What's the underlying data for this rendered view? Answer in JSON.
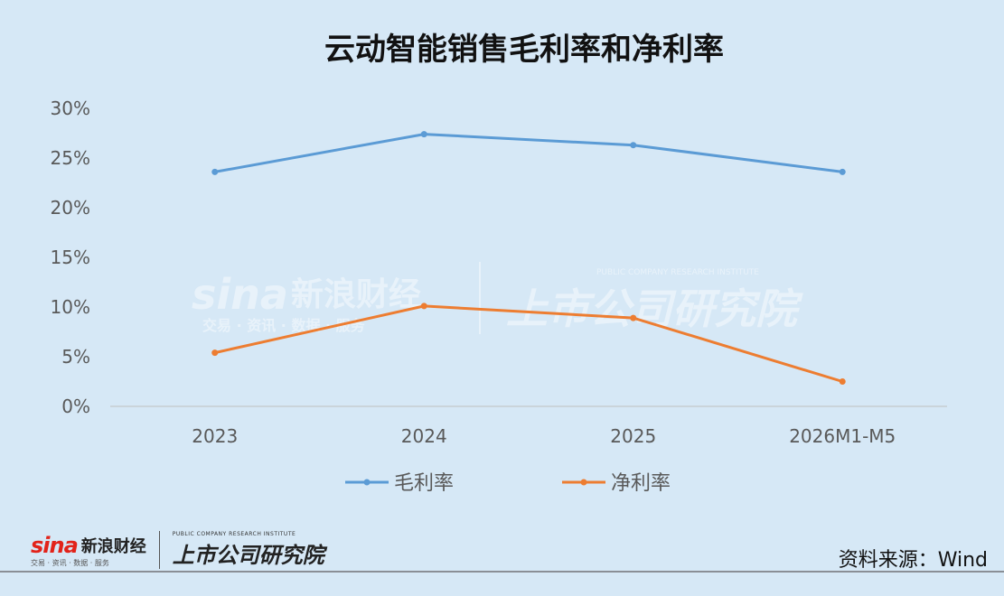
{
  "chart_data": {
    "type": "line",
    "title": "云动智能销售毛利率和净利率",
    "categories": [
      "2023",
      "2024",
      "2025",
      "2026M1-M5"
    ],
    "series": [
      {
        "name": "毛利率",
        "values": [
          23.6,
          27.4,
          26.3,
          23.6
        ],
        "color": "#5b9bd5"
      },
      {
        "name": "净利率",
        "values": [
          5.4,
          10.1,
          8.9,
          2.5
        ],
        "color": "#ed7d31"
      }
    ],
    "y_ticks": [
      "0%",
      "5%",
      "10%",
      "15%",
      "20%",
      "25%",
      "30%"
    ],
    "ylim": [
      0,
      30
    ],
    "legend": "bottom",
    "grid": false
  },
  "watermark": {
    "sina_word": "sina",
    "sina_cn": "新浪财经",
    "sina_sub": "交易 · 资讯 · 数据 · 服务",
    "research_en": "PUBLIC COMPANY RESEARCH INSTITUTE",
    "research_cn": "上市公司研究院"
  },
  "footer": {
    "sina_word": "sina",
    "sina_cn": "新浪财经",
    "sina_sub": "交易 · 资讯 · 数据 · 服务",
    "research_en": "PUBLIC COMPANY RESEARCH INSTITUTE",
    "research_cn": "上市公司研究院",
    "source": "资料来源：Wind"
  }
}
